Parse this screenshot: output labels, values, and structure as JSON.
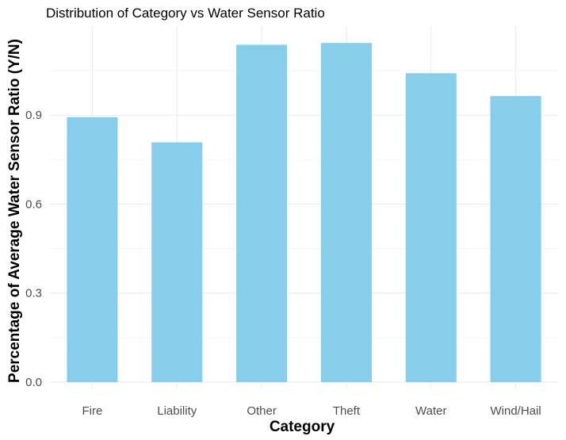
{
  "chart_data": {
    "type": "bar",
    "title": "Distribution of Category vs Water Sensor Ratio",
    "xlabel": "Category",
    "ylabel": "Percentage of Average Water Sensor Ratio (Y/N)",
    "categories": [
      "Fire",
      "Liability",
      "Other",
      "Theft",
      "Water",
      "Wind/Hail"
    ],
    "values": [
      0.893,
      0.808,
      1.137,
      1.143,
      1.041,
      0.964
    ],
    "ylim": [
      0,
      1.2
    ],
    "yticks": [
      0.0,
      0.3,
      0.6,
      0.9
    ],
    "ytick_labels": [
      "0.0",
      "0.3",
      "0.6",
      "0.9"
    ],
    "grid": true,
    "legend": "none",
    "bar_color": "#87CEEB"
  }
}
